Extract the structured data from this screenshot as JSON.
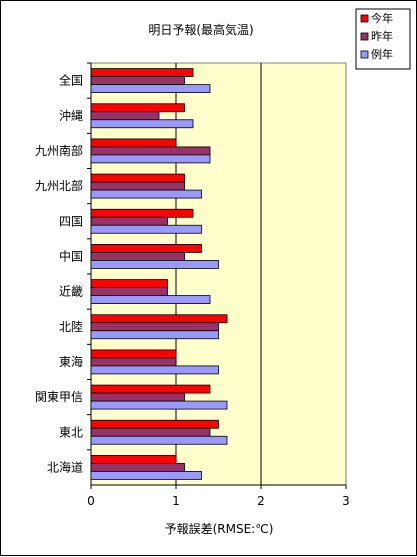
{
  "chart_data": {
    "type": "bar",
    "orientation": "horizontal",
    "title": "明日予報(最高気温)",
    "xlabel": "予報誤差(RMSE:℃)",
    "xlim": [
      0,
      3
    ],
    "xticks": [
      0,
      1,
      2,
      3
    ],
    "categories": [
      "全国",
      "沖縄",
      "九州南部",
      "九州北部",
      "四国",
      "中国",
      "近畿",
      "北陸",
      "東海",
      "関東甲信",
      "東北",
      "北海道"
    ],
    "series": [
      {
        "name": "今年",
        "color": "#ff0000",
        "values": [
          1.2,
          1.1,
          1.0,
          1.1,
          1.2,
          1.3,
          0.9,
          1.6,
          1.0,
          1.4,
          1.5,
          1.0
        ]
      },
      {
        "name": "昨年",
        "color": "#993366",
        "values": [
          1.1,
          0.8,
          1.4,
          1.1,
          0.9,
          1.1,
          0.9,
          1.5,
          1.0,
          1.1,
          1.4,
          1.1
        ]
      },
      {
        "name": "例年",
        "color": "#9999ff",
        "values": [
          1.4,
          1.2,
          1.4,
          1.3,
          1.3,
          1.5,
          1.4,
          1.5,
          1.5,
          1.6,
          1.6,
          1.3
        ]
      }
    ],
    "plot_background": "#ffffcc",
    "vertical_gridlines": true,
    "legend_position": "top-right"
  }
}
